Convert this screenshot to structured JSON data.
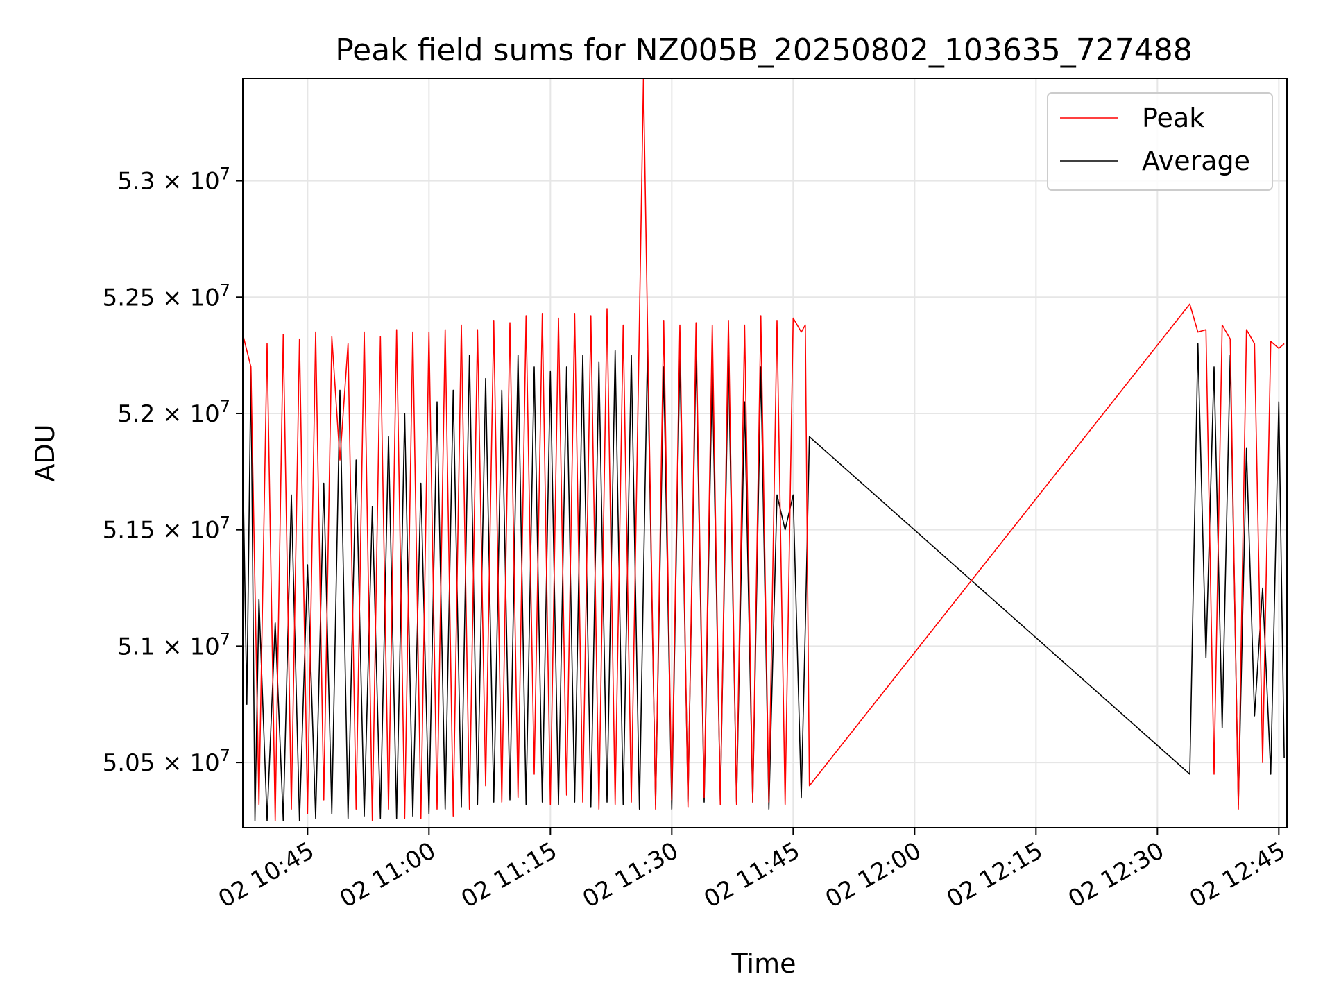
{
  "chart_data": {
    "type": "line",
    "title": "Peak field sums for NZ005B_20250802_103635_727488",
    "xlabel": "Time",
    "ylabel": "ADU",
    "date_prefix": "2025-08-02",
    "xlim": [
      "10:37",
      "12:46"
    ],
    "ylim": [
      50220000,
      53440000
    ],
    "y_ticks": [
      {
        "value": 50500000,
        "mantissa": "5.05",
        "exp": "7"
      },
      {
        "value": 51000000,
        "mantissa": "5.1",
        "exp": "7"
      },
      {
        "value": 51500000,
        "mantissa": "5.15",
        "exp": "7"
      },
      {
        "value": 52000000,
        "mantissa": "5.2",
        "exp": "7"
      },
      {
        "value": 52500000,
        "mantissa": "5.25",
        "exp": "7"
      },
      {
        "value": 53000000,
        "mantissa": "5.3",
        "exp": "7"
      }
    ],
    "x_ticks": [
      {
        "time": "10:45",
        "label": "02 10:45"
      },
      {
        "time": "11:00",
        "label": "02 11:00"
      },
      {
        "time": "11:15",
        "label": "02 11:15"
      },
      {
        "time": "11:30",
        "label": "02 11:30"
      },
      {
        "time": "11:45",
        "label": "02 11:45"
      },
      {
        "time": "12:00",
        "label": "02 12:00"
      },
      {
        "time": "12:15",
        "label": "02 12:15"
      },
      {
        "time": "12:30",
        "label": "02 12:30"
      },
      {
        "time": "12:45",
        "label": "02 12:45"
      }
    ],
    "grid": true,
    "legend_position": "top-right",
    "series": [
      {
        "name": "Peak",
        "color": "#ff0000",
        "x": [
          "10:37:00",
          "10:38:00",
          "10:39:00",
          "10:40:00",
          "10:41:00",
          "10:42:00",
          "10:43:00",
          "10:44:00",
          "10:45:00",
          "10:46:00",
          "10:47:00",
          "10:48:00",
          "10:49:00",
          "10:50:00",
          "10:51:00",
          "10:52:00",
          "10:53:00",
          "10:54:00",
          "10:55:00",
          "10:56:00",
          "10:57:00",
          "10:58:00",
          "10:59:00",
          "11:00:00",
          "11:01:00",
          "11:02:00",
          "11:03:00",
          "11:04:00",
          "11:05:00",
          "11:06:00",
          "11:07:00",
          "11:08:00",
          "11:09:00",
          "11:10:00",
          "11:11:00",
          "11:12:00",
          "11:13:00",
          "11:14:00",
          "11:15:00",
          "11:16:00",
          "11:17:00",
          "11:18:00",
          "11:19:00",
          "11:20:00",
          "11:21:00",
          "11:22:00",
          "11:23:00",
          "11:24:00",
          "11:25:00",
          "11:26:00",
          "11:26:30",
          "11:27:00",
          "11:28:00",
          "11:29:00",
          "11:30:00",
          "11:31:00",
          "11:32:00",
          "11:33:00",
          "11:34:00",
          "11:35:00",
          "11:36:00",
          "11:37:00",
          "11:38:00",
          "11:39:00",
          "11:40:00",
          "11:41:00",
          "11:42:00",
          "11:43:00",
          "11:44:00",
          "11:45:00",
          "11:46:00",
          "11:46:30",
          "11:47:00",
          "12:34:00",
          "12:35:00",
          "12:36:00",
          "12:37:00",
          "12:38:00",
          "12:39:00",
          "12:40:00",
          "12:41:00",
          "12:42:00",
          "12:43:00",
          "12:44:00",
          "12:45:00",
          "12:45:40"
        ],
        "y": [
          52340000,
          52200000,
          50320000,
          52300000,
          50250000,
          52340000,
          50300000,
          52320000,
          50280000,
          52350000,
          50340000,
          52330000,
          51800000,
          52300000,
          50300000,
          52350000,
          50250000,
          52330000,
          50300000,
          52360000,
          50260000,
          52350000,
          50260000,
          52350000,
          50300000,
          52360000,
          50270000,
          52380000,
          50300000,
          52360000,
          50400000,
          52400000,
          50330000,
          52390000,
          50350000,
          52420000,
          50450000,
          52430000,
          50320000,
          52410000,
          50360000,
          52430000,
          50330000,
          52420000,
          50300000,
          52450000,
          50320000,
          52380000,
          50330000,
          52400000,
          53440000,
          52380000,
          50300000,
          52400000,
          50340000,
          52380000,
          50310000,
          52390000,
          50350000,
          52380000,
          50320000,
          52400000,
          50320000,
          52380000,
          50330000,
          52420000,
          50330000,
          52400000,
          50320000,
          52410000,
          52350000,
          52380000,
          50400000,
          52470000,
          52350000,
          52360000,
          50450000,
          52380000,
          52320000,
          50300000,
          52360000,
          52300000,
          50500000,
          52310000,
          52280000,
          52300000
        ]
      },
      {
        "name": "Average",
        "color": "#000000",
        "x": [
          "10:37:00",
          "10:37:30",
          "10:38:00",
          "10:38:30",
          "10:39:00",
          "10:40:00",
          "10:41:00",
          "10:42:00",
          "10:43:00",
          "10:44:00",
          "10:45:00",
          "10:46:00",
          "10:47:00",
          "10:48:00",
          "10:49:00",
          "10:50:00",
          "10:51:00",
          "10:52:00",
          "10:53:00",
          "10:54:00",
          "10:55:00",
          "10:56:00",
          "10:57:00",
          "10:58:00",
          "10:59:00",
          "11:00:00",
          "11:01:00",
          "11:02:00",
          "11:03:00",
          "11:04:00",
          "11:05:00",
          "11:06:00",
          "11:07:00",
          "11:08:00",
          "11:09:00",
          "11:10:00",
          "11:11:00",
          "11:12:00",
          "11:13:00",
          "11:14:00",
          "11:15:00",
          "11:16:00",
          "11:17:00",
          "11:18:00",
          "11:19:00",
          "11:20:00",
          "11:21:00",
          "11:22:00",
          "11:23:00",
          "11:24:00",
          "11:25:00",
          "11:26:00",
          "11:27:00",
          "11:28:00",
          "11:29:00",
          "11:30:00",
          "11:31:00",
          "11:32:00",
          "11:33:00",
          "11:34:00",
          "11:35:00",
          "11:36:00",
          "11:37:00",
          "11:38:00",
          "11:39:00",
          "11:40:00",
          "11:41:00",
          "11:42:00",
          "11:43:00",
          "11:44:00",
          "11:45:00",
          "11:46:00",
          "11:46:30",
          "11:47:00",
          "12:34:00",
          "12:35:00",
          "12:36:00",
          "12:37:00",
          "12:38:00",
          "12:39:00",
          "12:40:00",
          "12:41:00",
          "12:42:00",
          "12:43:00",
          "12:44:00",
          "12:45:00",
          "12:45:40"
        ],
        "y": [
          51800000,
          50750000,
          52200000,
          50250000,
          51200000,
          50250000,
          51100000,
          50250000,
          51650000,
          50250000,
          51350000,
          50260000,
          51700000,
          50280000,
          52100000,
          50260000,
          51800000,
          50270000,
          51600000,
          50260000,
          51900000,
          50260000,
          52000000,
          50270000,
          51700000,
          50280000,
          52050000,
          50300000,
          52100000,
          50310000,
          52250000,
          50320000,
          52150000,
          50330000,
          52100000,
          50340000,
          52250000,
          50320000,
          52200000,
          50330000,
          52180000,
          50320000,
          52200000,
          50330000,
          52250000,
          50310000,
          52220000,
          50330000,
          52270000,
          50320000,
          52250000,
          50300000,
          52270000,
          50320000,
          52200000,
          50300000,
          52250000,
          50330000,
          52270000,
          50330000,
          52200000,
          50330000,
          52250000,
          50330000,
          52050000,
          50330000,
          52200000,
          50300000,
          51650000,
          51500000,
          51650000,
          50350000,
          51080000,
          51900000,
          50450000,
          52300000,
          50950000,
          52200000,
          50650000,
          52250000,
          50320000,
          51850000,
          50700000,
          51250000,
          50450000,
          52050000,
          50520000
        ]
      }
    ]
  }
}
